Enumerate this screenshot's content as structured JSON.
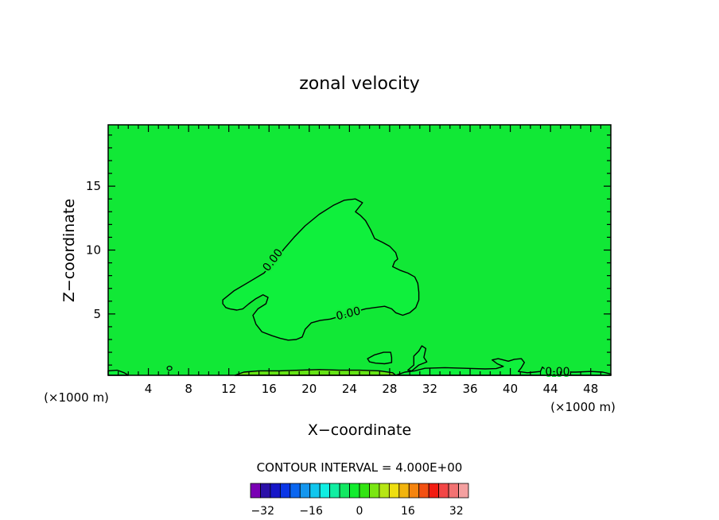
{
  "chart_data": {
    "type": "contour",
    "title": "zonal velocity",
    "xlabel": "X−coordinate",
    "ylabel": "Z−coordinate",
    "x_unit_left": "(×1000 m)",
    "x_unit_right": "(×1000 m)",
    "xlim": [
      0,
      50
    ],
    "ylim": [
      0.2,
      19.8
    ],
    "x_ticks": [
      4,
      8,
      12,
      16,
      20,
      24,
      28,
      32,
      36,
      40,
      44,
      48
    ],
    "y_ticks": [
      5,
      10,
      15
    ],
    "grid": false,
    "background_level_color": "#11e836",
    "contour_label": "0.00",
    "contour_interval_text": "CONTOUR INTERVAL = 4.000E+00",
    "colorbar": {
      "min": -36,
      "max": 36,
      "step": 4,
      "tick_labels": [
        "−32",
        "−16",
        "0",
        "16",
        "32"
      ],
      "tick_values": [
        -32,
        -16,
        0,
        16,
        32
      ],
      "colors": [
        "#7a00b4",
        "#2b10a8",
        "#1616c8",
        "#0a36e6",
        "#0a66f0",
        "#1496ee",
        "#10c6ee",
        "#10eee2",
        "#10eea2",
        "#12e862",
        "#12ec2e",
        "#32e412",
        "#7ae612",
        "#b6e614",
        "#eede10",
        "#f2b40e",
        "#f5840e",
        "#f25012",
        "#f21c12",
        "#f24646",
        "#f27272",
        "#f4a0a0"
      ]
    },
    "regions": [
      {
        "name": "main-negative-region",
        "fill": "#0ff03c",
        "points": [
          [
            11.4,
            6.1
          ],
          [
            12.5,
            6.8
          ],
          [
            14,
            7.5
          ],
          [
            15.5,
            8.2
          ],
          [
            16.5,
            9.1
          ],
          [
            17.5,
            10.1
          ],
          [
            18.5,
            11
          ],
          [
            19.6,
            11.9
          ],
          [
            21,
            12.8
          ],
          [
            22.4,
            13.5
          ],
          [
            23.5,
            13.9
          ],
          [
            24.6,
            14
          ],
          [
            25.3,
            13.7
          ],
          [
            24.9,
            13.3
          ],
          [
            24.6,
            13
          ],
          [
            25.1,
            12.7
          ],
          [
            25.6,
            12.3
          ],
          [
            26.1,
            11.6
          ],
          [
            26.5,
            10.9
          ],
          [
            27.3,
            10.6
          ],
          [
            28,
            10.3
          ],
          [
            28.6,
            9.8
          ],
          [
            28.8,
            9.3
          ],
          [
            28.5,
            9.1
          ],
          [
            28.3,
            8.7
          ],
          [
            29.1,
            8.4
          ],
          [
            29.8,
            8.2
          ],
          [
            30.5,
            7.9
          ],
          [
            30.8,
            7.4
          ],
          [
            30.9,
            6.7
          ],
          [
            30.9,
            6.1
          ],
          [
            30.6,
            5.5
          ],
          [
            30,
            5.1
          ],
          [
            29.3,
            4.9
          ],
          [
            28.6,
            5.1
          ],
          [
            28.2,
            5.4
          ],
          [
            27.5,
            5.6
          ],
          [
            26.5,
            5.5
          ],
          [
            25.6,
            5.4
          ],
          [
            24.7,
            5.2
          ],
          [
            23.9,
            5
          ],
          [
            23,
            4.8
          ],
          [
            22.1,
            4.6
          ],
          [
            21.1,
            4.5
          ],
          [
            20.2,
            4.3
          ],
          [
            19.6,
            3.8
          ],
          [
            19.3,
            3.2
          ],
          [
            18.7,
            3
          ],
          [
            17.9,
            2.95
          ],
          [
            17.1,
            3.1
          ],
          [
            16.3,
            3.3
          ],
          [
            15.3,
            3.6
          ],
          [
            14.7,
            4.2
          ],
          [
            14.4,
            4.9
          ],
          [
            14.9,
            5.4
          ],
          [
            15.7,
            5.8
          ],
          [
            15.9,
            6.3
          ],
          [
            15.4,
            6.5
          ],
          [
            14.7,
            6.2
          ],
          [
            14,
            5.8
          ],
          [
            13.4,
            5.4
          ],
          [
            12.8,
            5.3
          ],
          [
            12.1,
            5.4
          ],
          [
            11.7,
            5.5
          ],
          [
            11.4,
            5.8
          ]
        ]
      },
      {
        "name": "small-island-a",
        "fill": "#0ff03c",
        "points": [
          [
            25.8,
            1.5
          ],
          [
            26.5,
            1.8
          ],
          [
            27.4,
            2
          ],
          [
            28.1,
            2
          ],
          [
            28.2,
            1.6
          ],
          [
            28.2,
            1.2
          ],
          [
            27.5,
            1.1
          ],
          [
            26.6,
            1.15
          ],
          [
            26,
            1.25
          ]
        ]
      },
      {
        "name": "small-island-b",
        "fill": "#0ff03c",
        "points": [
          [
            29.8,
            0.6
          ],
          [
            30.4,
            1
          ],
          [
            30.4,
            1.7
          ],
          [
            30.9,
            2.1
          ],
          [
            31.2,
            2.5
          ],
          [
            31.6,
            2.3
          ],
          [
            31.4,
            1.6
          ],
          [
            31.7,
            1.25
          ],
          [
            30.9,
            1
          ],
          [
            30.2,
            0.55
          ]
        ]
      },
      {
        "name": "bottom-strip-right",
        "fill": "#0ff03c",
        "points": [
          [
            28.6,
            0.2
          ],
          [
            29.5,
            0.45
          ],
          [
            30.5,
            0.55
          ],
          [
            31.5,
            0.75
          ],
          [
            33.5,
            0.8
          ],
          [
            35.5,
            0.75
          ],
          [
            37.5,
            0.7
          ],
          [
            38.6,
            0.72
          ],
          [
            39.3,
            0.9
          ],
          [
            38.7,
            1.1
          ],
          [
            38.2,
            1.4
          ],
          [
            38.8,
            1.5
          ],
          [
            39.8,
            1.3
          ],
          [
            40.4,
            1.45
          ],
          [
            41.1,
            1.5
          ],
          [
            41.4,
            1.2
          ],
          [
            41.1,
            0.8
          ],
          [
            40.8,
            0.5
          ],
          [
            41.7,
            0.4
          ],
          [
            42.4,
            0.45
          ],
          [
            43,
            0.5
          ],
          [
            43.2,
            0.85
          ],
          [
            43.7,
            0.5
          ],
          [
            45,
            0.45
          ],
          [
            46.5,
            0.45
          ],
          [
            48,
            0.5
          ],
          [
            49.2,
            0.45
          ],
          [
            50,
            0.3
          ],
          [
            50,
            0.2
          ]
        ]
      },
      {
        "name": "bottom-positive-strip",
        "fill": "#64e414",
        "points": [
          [
            12.6,
            0.2
          ],
          [
            13.5,
            0.45
          ],
          [
            15,
            0.55
          ],
          [
            17,
            0.55
          ],
          [
            19,
            0.6
          ],
          [
            21,
            0.65
          ],
          [
            23,
            0.6
          ],
          [
            25,
            0.6
          ],
          [
            27,
            0.55
          ],
          [
            28.3,
            0.4
          ],
          [
            28.6,
            0.2
          ]
        ]
      },
      {
        "name": "bottom-left-sliver",
        "fill": "#0ff03c",
        "points": [
          [
            0,
            0.2
          ],
          [
            0,
            0.55
          ],
          [
            0.9,
            0.6
          ],
          [
            1.6,
            0.4
          ],
          [
            2,
            0.2
          ]
        ]
      }
    ]
  }
}
